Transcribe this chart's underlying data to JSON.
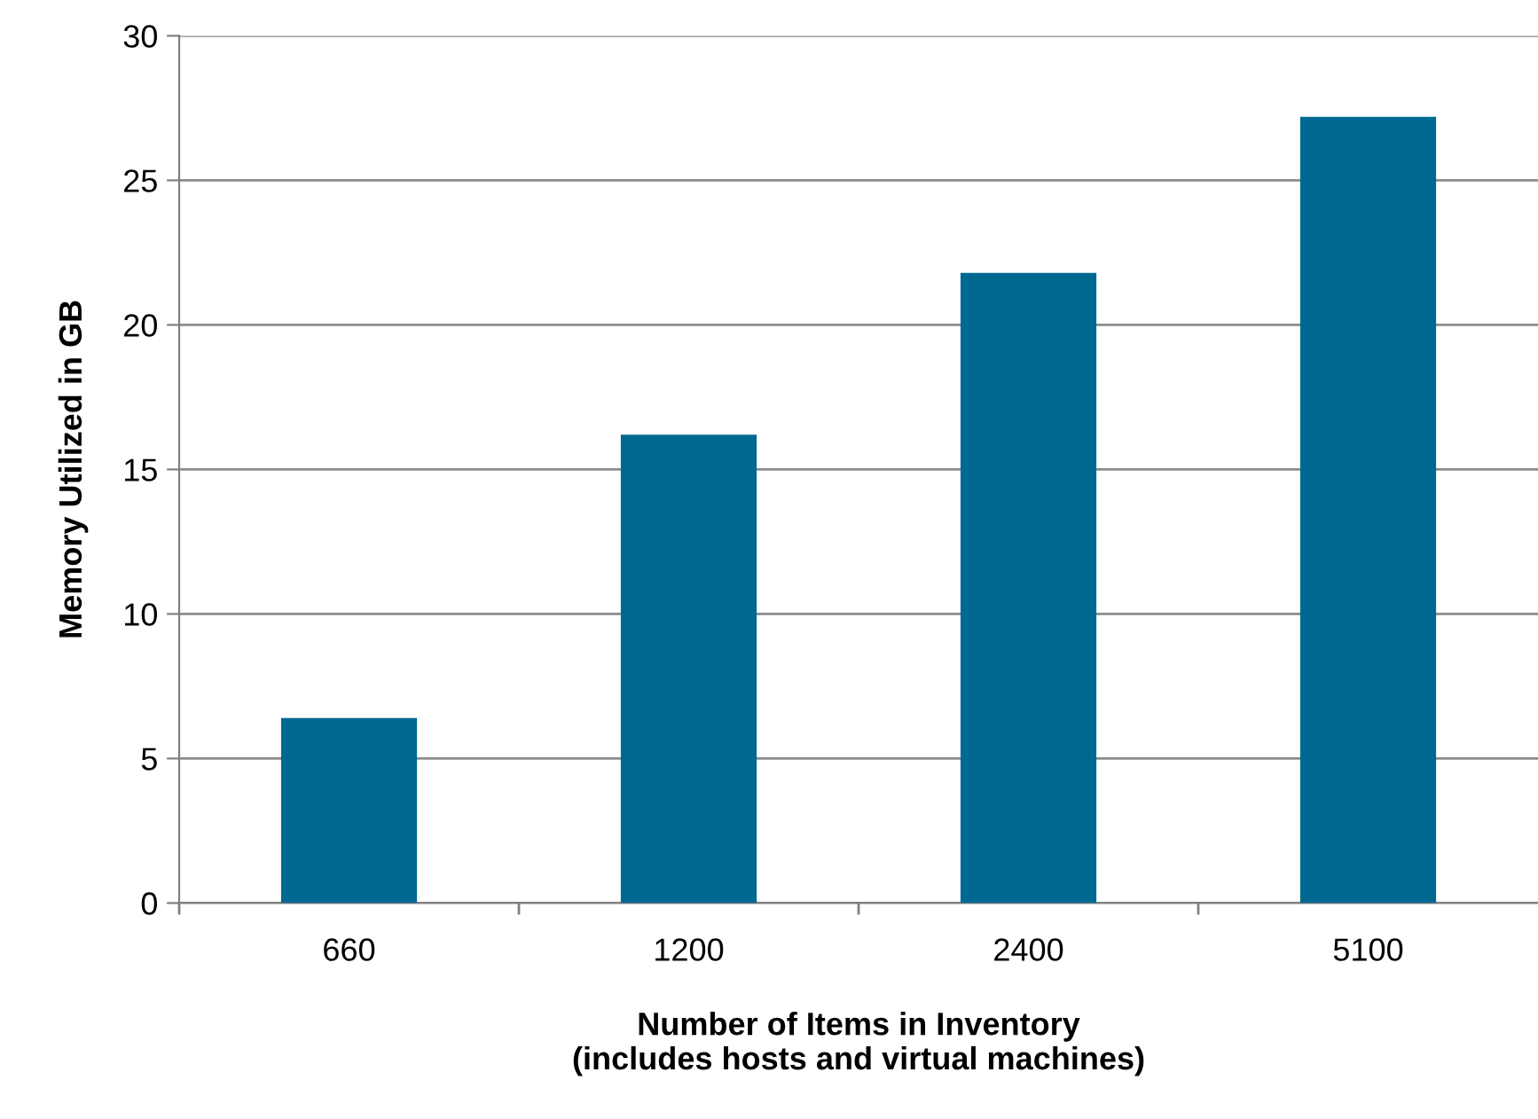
{
  "chart_data": {
    "type": "bar",
    "xlabel": "Number of Items in Inventory\n(includes hosts and virtual machines)",
    "ylabel": "Memory Utilized in GB",
    "categories": [
      "660",
      "1200",
      "2400",
      "5100"
    ],
    "values": [
      6.4,
      16.2,
      21.8,
      27.2
    ],
    "color": "#006991",
    "ylim": [
      0,
      30
    ],
    "yticks": [
      0,
      5,
      10,
      15,
      20,
      25,
      30
    ],
    "grid": "y",
    "legend": false
  }
}
